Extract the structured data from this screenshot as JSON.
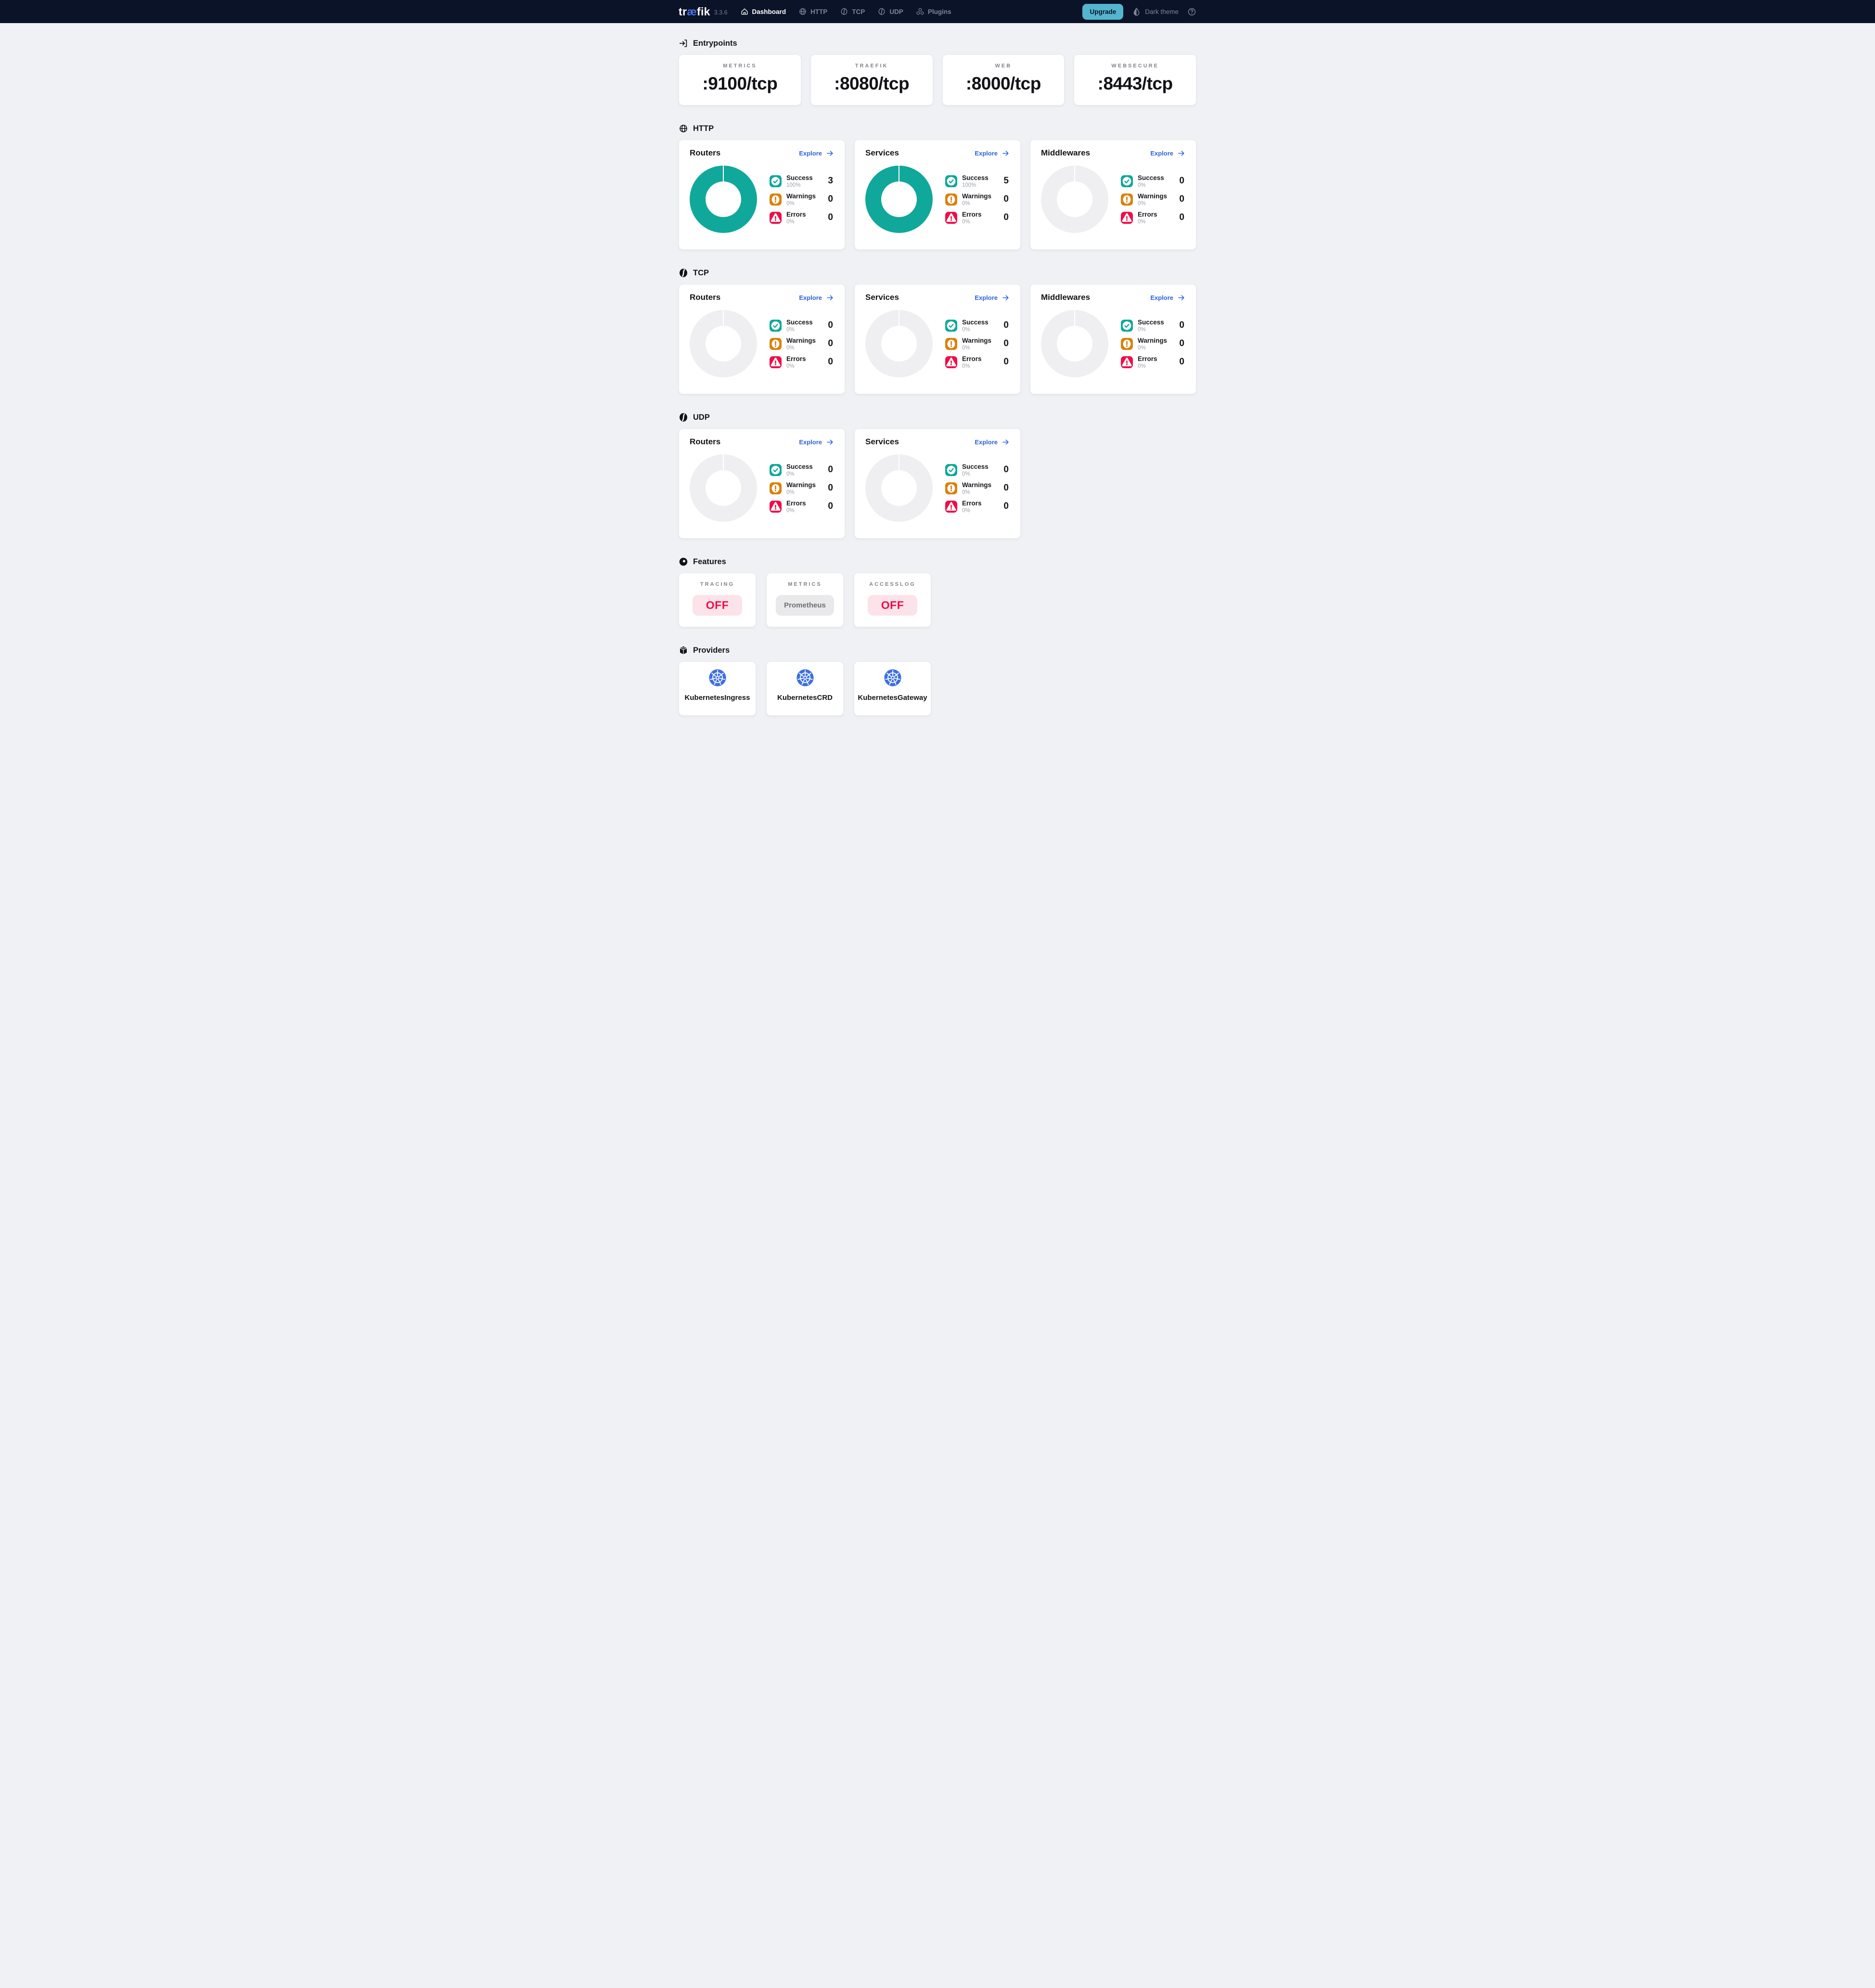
{
  "colors": {
    "navbar_bg": "#0b1328",
    "logo_accent_blue": "#4a72e8",
    "upgrade_button_bg": "#53b6ce",
    "explore_link_blue": "#2d63da",
    "success_teal": "#10a89a",
    "warning_orange": "#d8820d",
    "error_red": "#f20c49",
    "donut_empty_gray": "#efeff1",
    "kubernetes_blue": "#3e6fe1",
    "off_badge_bg": "#fce3e9",
    "neutral_badge_bg": "#e9e9eb",
    "page_bg": "#f0f1f4"
  },
  "navbar": {
    "logo_pre": "tr",
    "logo_mid": "æ",
    "logo_post": "fik",
    "version": "3.3.6",
    "items": [
      {
        "label": "Dashboard",
        "icon": "home-icon",
        "active": true
      },
      {
        "label": "HTTP",
        "icon": "globe-icon",
        "active": false
      },
      {
        "label": "TCP",
        "icon": "pipeline-icon",
        "active": false
      },
      {
        "label": "UDP",
        "icon": "pipeline-icon",
        "active": false
      },
      {
        "label": "Plugins",
        "icon": "cubes-icon",
        "active": false
      }
    ],
    "upgrade_label": "Upgrade",
    "theme_toggle_label": "Dark theme"
  },
  "entrypoints": {
    "title": "Entrypoints",
    "cards": [
      {
        "label": "METRICS",
        "value": ":9100/tcp"
      },
      {
        "label": "TRAEFIK",
        "value": ":8080/tcp"
      },
      {
        "label": "WEB",
        "value": ":8000/tcp"
      },
      {
        "label": "WEBSECURE",
        "value": ":8443/tcp"
      }
    ]
  },
  "http": {
    "title": "HTTP",
    "cards": [
      {
        "title": "Routers",
        "explore_label": "Explore",
        "donut_filled": true,
        "legend": [
          {
            "name": "Success",
            "percent": "100%",
            "value": "3"
          },
          {
            "name": "Warnings",
            "percent": "0%",
            "value": "0"
          },
          {
            "name": "Errors",
            "percent": "0%",
            "value": "0"
          }
        ]
      },
      {
        "title": "Services",
        "explore_label": "Explore",
        "donut_filled": true,
        "legend": [
          {
            "name": "Success",
            "percent": "100%",
            "value": "5"
          },
          {
            "name": "Warnings",
            "percent": "0%",
            "value": "0"
          },
          {
            "name": "Errors",
            "percent": "0%",
            "value": "0"
          }
        ]
      },
      {
        "title": "Middlewares",
        "explore_label": "Explore",
        "donut_filled": false,
        "legend": [
          {
            "name": "Success",
            "percent": "0%",
            "value": "0"
          },
          {
            "name": "Warnings",
            "percent": "0%",
            "value": "0"
          },
          {
            "name": "Errors",
            "percent": "0%",
            "value": "0"
          }
        ]
      }
    ]
  },
  "tcp": {
    "title": "TCP",
    "cards": [
      {
        "title": "Routers",
        "explore_label": "Explore",
        "donut_filled": false,
        "legend": [
          {
            "name": "Success",
            "percent": "0%",
            "value": "0"
          },
          {
            "name": "Warnings",
            "percent": "0%",
            "value": "0"
          },
          {
            "name": "Errors",
            "percent": "0%",
            "value": "0"
          }
        ]
      },
      {
        "title": "Services",
        "explore_label": "Explore",
        "donut_filled": false,
        "legend": [
          {
            "name": "Success",
            "percent": "0%",
            "value": "0"
          },
          {
            "name": "Warnings",
            "percent": "0%",
            "value": "0"
          },
          {
            "name": "Errors",
            "percent": "0%",
            "value": "0"
          }
        ]
      },
      {
        "title": "Middlewares",
        "explore_label": "Explore",
        "donut_filled": false,
        "legend": [
          {
            "name": "Success",
            "percent": "0%",
            "value": "0"
          },
          {
            "name": "Warnings",
            "percent": "0%",
            "value": "0"
          },
          {
            "name": "Errors",
            "percent": "0%",
            "value": "0"
          }
        ]
      }
    ]
  },
  "udp": {
    "title": "UDP",
    "cards": [
      {
        "title": "Routers",
        "explore_label": "Explore",
        "donut_filled": false,
        "legend": [
          {
            "name": "Success",
            "percent": "0%",
            "value": "0"
          },
          {
            "name": "Warnings",
            "percent": "0%",
            "value": "0"
          },
          {
            "name": "Errors",
            "percent": "0%",
            "value": "0"
          }
        ]
      },
      {
        "title": "Services",
        "explore_label": "Explore",
        "donut_filled": false,
        "legend": [
          {
            "name": "Success",
            "percent": "0%",
            "value": "0"
          },
          {
            "name": "Warnings",
            "percent": "0%",
            "value": "0"
          },
          {
            "name": "Errors",
            "percent": "0%",
            "value": "0"
          }
        ]
      }
    ]
  },
  "features": {
    "title": "Features",
    "cards": [
      {
        "label": "TRACING",
        "badge": "OFF",
        "state": "off"
      },
      {
        "label": "METRICS",
        "badge": "Prometheus",
        "state": "neutral"
      },
      {
        "label": "ACCESSLOG",
        "badge": "OFF",
        "state": "off"
      }
    ]
  },
  "providers": {
    "title": "Providers",
    "cards": [
      {
        "label": "KubernetesIngress",
        "icon": "kubernetes-icon"
      },
      {
        "label": "KubernetesCRD",
        "icon": "kubernetes-icon"
      },
      {
        "label": "KubernetesGateway",
        "icon": "kubernetes-icon"
      }
    ]
  }
}
